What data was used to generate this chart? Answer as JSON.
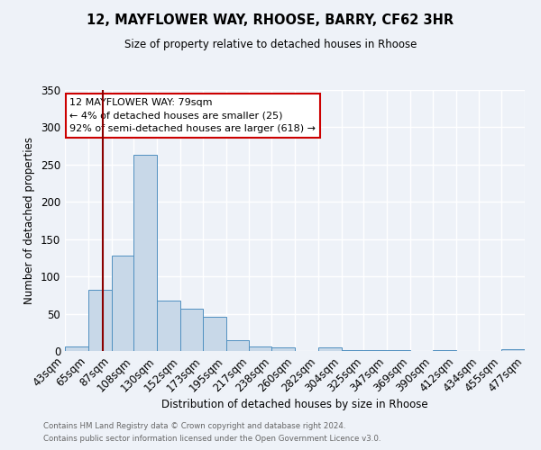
{
  "title": "12, MAYFLOWER WAY, RHOOSE, BARRY, CF62 3HR",
  "subtitle": "Size of property relative to detached houses in Rhoose",
  "xlabel": "Distribution of detached houses by size in Rhoose",
  "ylabel": "Number of detached properties",
  "bin_edges": [
    43,
    65,
    87,
    108,
    130,
    152,
    173,
    195,
    217,
    238,
    260,
    282,
    304,
    325,
    347,
    369,
    390,
    412,
    434,
    455,
    477
  ],
  "bar_heights": [
    6,
    82,
    128,
    263,
    67,
    57,
    46,
    15,
    6,
    5,
    0,
    5,
    1,
    1,
    1,
    0,
    1,
    0,
    0,
    3
  ],
  "bar_color": "#c8d8e8",
  "bar_edge_color": "#5090c0",
  "vline_x": 79,
  "vline_color": "#8b0000",
  "ylim": [
    0,
    350
  ],
  "annotation_title": "12 MAYFLOWER WAY: 79sqm",
  "annotation_line1": "← 4% of detached houses are smaller (25)",
  "annotation_line2": "92% of semi-detached houses are larger (618) →",
  "annotation_box_color": "#ffffff",
  "annotation_box_edge": "#cc0000",
  "footer1": "Contains HM Land Registry data © Crown copyright and database right 2024.",
  "footer2": "Contains public sector information licensed under the Open Government Licence v3.0.",
  "background_color": "#eef2f8",
  "grid_color": "#ffffff",
  "tick_labels": [
    "43sqm",
    "65sqm",
    "87sqm",
    "108sqm",
    "130sqm",
    "152sqm",
    "173sqm",
    "195sqm",
    "217sqm",
    "238sqm",
    "260sqm",
    "282sqm",
    "304sqm",
    "325sqm",
    "347sqm",
    "369sqm",
    "390sqm",
    "412sqm",
    "434sqm",
    "455sqm",
    "477sqm"
  ]
}
